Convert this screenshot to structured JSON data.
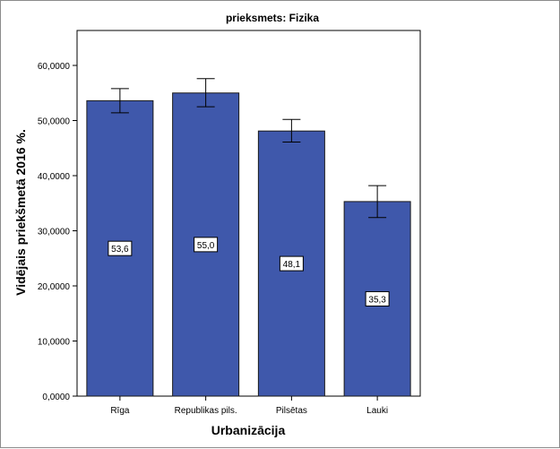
{
  "chart_data": {
    "type": "bar",
    "title": "prieksmets: Fizika",
    "xlabel": "Urbanizācija",
    "ylabel": "Vidējais priekšmetā 2016 %.",
    "categories": [
      "Rīga",
      "Republikas pils.",
      "Pilsētas",
      "Lauki"
    ],
    "values": [
      53.6,
      55.0,
      48.1,
      35.3
    ],
    "value_labels": [
      "53,6",
      "55,0",
      "48,1",
      "35,3"
    ],
    "error_bars": [
      {
        "low": 51.4,
        "high": 55.8
      },
      {
        "low": 52.5,
        "high": 57.6
      },
      {
        "low": 46.1,
        "high": 50.2
      },
      {
        "low": 32.4,
        "high": 38.2
      }
    ],
    "ylim": [
      0,
      70
    ],
    "yticks": [
      0,
      10,
      20,
      30,
      40,
      50,
      60
    ],
    "ytick_labels": [
      "0,0000",
      "10,0000",
      "20,0000",
      "30,0000",
      "40,0000",
      "50,0000",
      "60,0000"
    ],
    "grid": false,
    "colors": {
      "bar_fill": "#3f58ab",
      "bar_stroke": "#1a1a1a",
      "plot_background": "#ffffff",
      "page_background": "#ffffff"
    }
  }
}
